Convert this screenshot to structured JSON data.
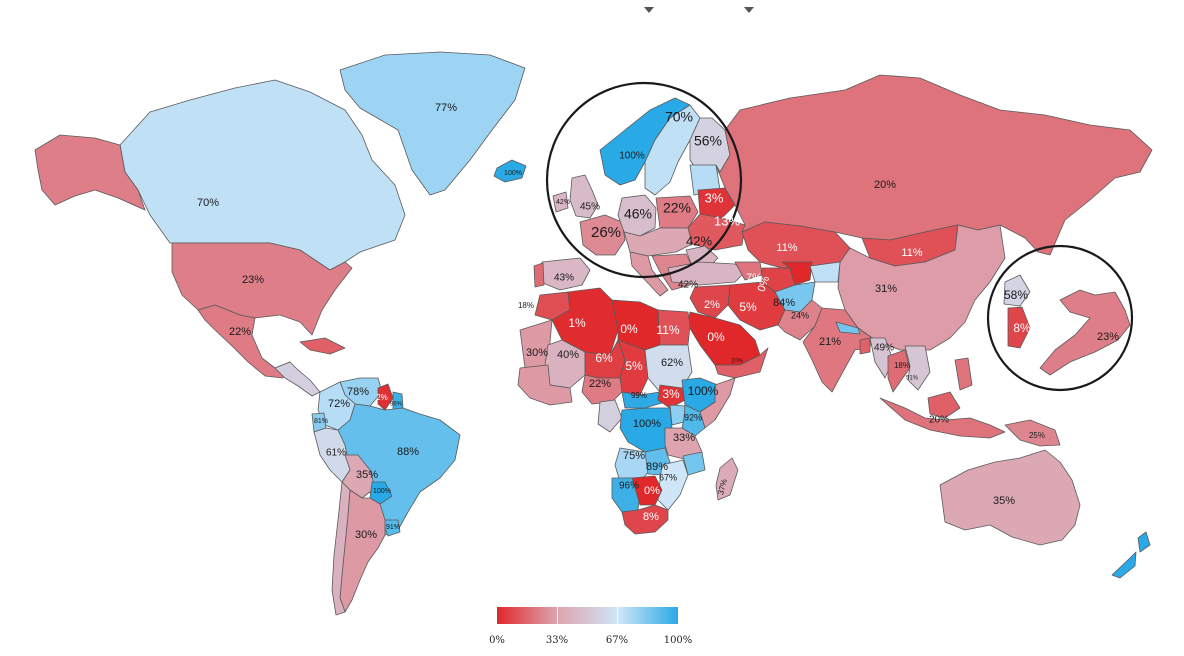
{
  "legend": {
    "labels": [
      "0%",
      "33%",
      "67%",
      "100%"
    ],
    "colors": {
      "low": "#e0282b",
      "mid_low": "#dda4b0",
      "mid_high": "#cfe6f8",
      "high": "#29a9e6"
    }
  },
  "regions": [
    {
      "id": "canada",
      "label": "70%",
      "value": 70
    },
    {
      "id": "greenland",
      "label": "77%",
      "value": 77
    },
    {
      "id": "iceland",
      "label": "100%",
      "value": 100
    },
    {
      "id": "usa",
      "label": "23%",
      "value": 23
    },
    {
      "id": "mexico",
      "label": "22%",
      "value": 22
    },
    {
      "id": "venezuela",
      "label": "78%",
      "value": 78
    },
    {
      "id": "colombia",
      "label": "72%",
      "value": 72
    },
    {
      "id": "ecuador",
      "label": "81%",
      "value": 81
    },
    {
      "id": "peru",
      "label": "61%",
      "value": 61
    },
    {
      "id": "brazil",
      "label": "88%",
      "value": 88
    },
    {
      "id": "bolivia",
      "label": "35%",
      "value": 35
    },
    {
      "id": "paraguay",
      "label": "100%",
      "value": 100
    },
    {
      "id": "uruguay",
      "label": "91%",
      "value": 91
    },
    {
      "id": "argentina",
      "label": "30%",
      "value": 30
    },
    {
      "id": "guyana",
      "label": "2%",
      "value": 2
    },
    {
      "id": "suriname",
      "label": "96%",
      "value": 96
    },
    {
      "id": "uk",
      "label": "45%",
      "value": 45
    },
    {
      "id": "ireland",
      "label": "42%",
      "value": 42
    },
    {
      "id": "norway",
      "label": "100%",
      "value": 100
    },
    {
      "id": "sweden",
      "label": "70%",
      "value": 70
    },
    {
      "id": "finland",
      "label": "56%",
      "value": 56
    },
    {
      "id": "germany",
      "label": "46%",
      "value": 46
    },
    {
      "id": "poland",
      "label": "22%",
      "value": 22
    },
    {
      "id": "belarus",
      "label": "3%",
      "value": 3
    },
    {
      "id": "ukraine",
      "label": "13%",
      "value": 13
    },
    {
      "id": "france",
      "label": "26%",
      "value": 26
    },
    {
      "id": "romania",
      "label": "42%",
      "value": 42
    },
    {
      "id": "russia",
      "label": "20%",
      "value": 20
    },
    {
      "id": "spain",
      "label": "43%",
      "value": 43
    },
    {
      "id": "portugal",
      "label": "18%",
      "value": 18
    },
    {
      "id": "turkey",
      "label": "42%",
      "value": 42
    },
    {
      "id": "kazakhstan",
      "label": "11%",
      "value": 11
    },
    {
      "id": "mongolia",
      "label": "11%",
      "value": 11
    },
    {
      "id": "china",
      "label": "31%",
      "value": 31
    },
    {
      "id": "north-korea",
      "label": "58%",
      "value": 58
    },
    {
      "id": "south-korea",
      "label": "8%",
      "value": 8
    },
    {
      "id": "japan",
      "label": "23%",
      "value": 23
    },
    {
      "id": "iran",
      "label": "5%",
      "value": 5
    },
    {
      "id": "iraq",
      "label": "2%",
      "value": 2
    },
    {
      "id": "turkmenistan",
      "label": "7%",
      "value": 7
    },
    {
      "id": "uzbekistan",
      "label": "0%",
      "value": 0
    },
    {
      "id": "afghanistan",
      "label": "84%",
      "value": 84
    },
    {
      "id": "pakistan",
      "label": "24%",
      "value": 24
    },
    {
      "id": "india",
      "label": "21%",
      "value": 21
    },
    {
      "id": "myanmar",
      "label": "49%",
      "value": 49
    },
    {
      "id": "thailand",
      "label": "18%",
      "value": 18
    },
    {
      "id": "cambodia",
      "label": "51%",
      "value": 51
    },
    {
      "id": "saudi-arabia",
      "label": "0%",
      "value": 0
    },
    {
      "id": "yemen",
      "label": "20%",
      "value": 20
    },
    {
      "id": "algeria",
      "label": "1%",
      "value": 1
    },
    {
      "id": "libya",
      "label": "0%",
      "value": 0
    },
    {
      "id": "egypt",
      "label": "11%",
      "value": 11
    },
    {
      "id": "mauritania",
      "label": "30%",
      "value": 30
    },
    {
      "id": "mali",
      "label": "40%",
      "value": 40
    },
    {
      "id": "niger",
      "label": "6%",
      "value": 6
    },
    {
      "id": "chad",
      "label": "5%",
      "value": 5
    },
    {
      "id": "sudan",
      "label": "62%",
      "value": 62
    },
    {
      "id": "nigeria",
      "label": "22%",
      "value": 22
    },
    {
      "id": "ethiopia",
      "label": "100%",
      "value": 100
    },
    {
      "id": "south-sudan",
      "label": "3%",
      "value": 3
    },
    {
      "id": "car",
      "label": "99%",
      "value": 99
    },
    {
      "id": "drc",
      "label": "100%",
      "value": 100
    },
    {
      "id": "kenya",
      "label": "92%",
      "value": 92
    },
    {
      "id": "tanzania",
      "label": "33%",
      "value": 33
    },
    {
      "id": "angola",
      "label": "75%",
      "value": 75
    },
    {
      "id": "zambia",
      "label": "89%",
      "value": 89
    },
    {
      "id": "mozambique",
      "label": "67%",
      "value": 67
    },
    {
      "id": "namibia",
      "label": "96%",
      "value": 96
    },
    {
      "id": "botswana",
      "label": "0%",
      "value": 0
    },
    {
      "id": "south-africa",
      "label": "8%",
      "value": 8
    },
    {
      "id": "madagascar",
      "label": "37%",
      "value": 37
    },
    {
      "id": "indonesia",
      "label": "20%",
      "value": 20
    },
    {
      "id": "png",
      "label": "25%",
      "value": 25
    },
    {
      "id": "australia",
      "label": "35%",
      "value": 35
    },
    {
      "id": "new-zealand",
      "label": "",
      "value": 100
    }
  ]
}
